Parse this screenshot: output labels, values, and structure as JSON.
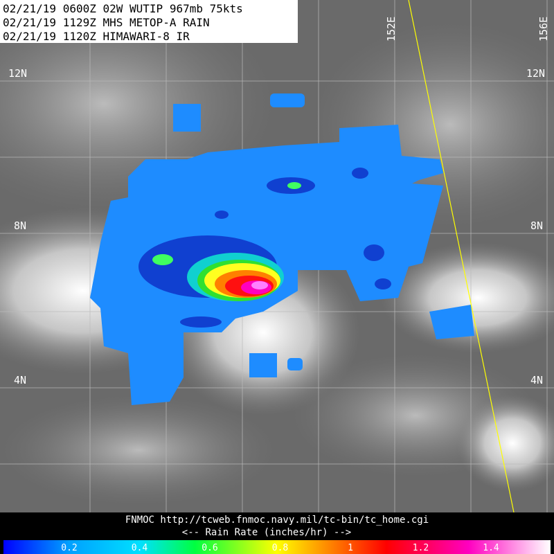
{
  "header": {
    "lines": [
      "02/21/19 0600Z  02W WUTIP 967mb 75kts",
      "02/21/19 1129Z  MHS METOP-A RAIN",
      "02/21/19 1120Z  HIMAWARI-8 IR"
    ]
  },
  "grid_labels": {
    "latitudes": [
      "12N",
      "8N",
      "4N"
    ],
    "longitudes": [
      "152E",
      "156E"
    ]
  },
  "footer": {
    "source": "FNMOC  http://tcweb.fnmoc.navy.mil/tc-bin/tc_home.cgi",
    "legend_title": "<--  Rain Rate (inches/hr)  -->"
  },
  "colorbar": {
    "ticks": [
      0.2,
      0.4,
      0.6,
      0.8,
      1,
      1.2,
      1.4
    ]
  }
}
